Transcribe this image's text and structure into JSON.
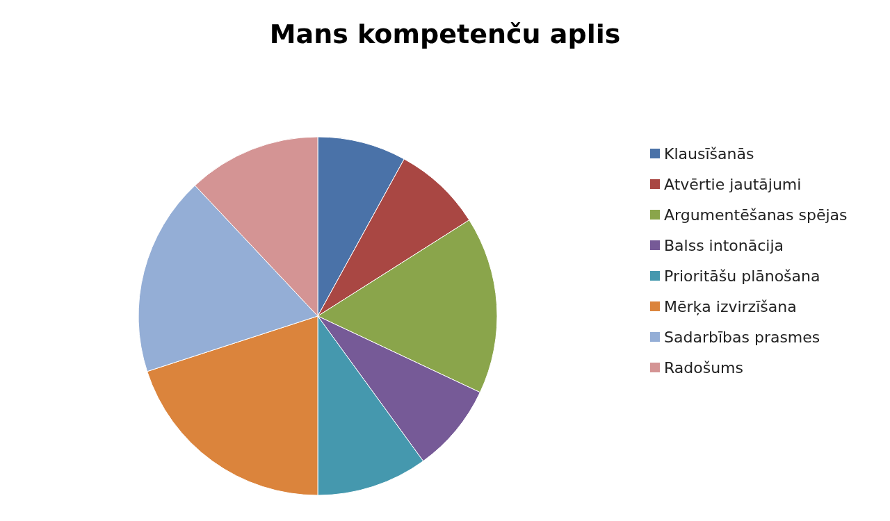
{
  "chart_data": {
    "type": "pie",
    "title": "Mans kompetenču aplis",
    "categories": [
      "Klausīšanās",
      "Atvērtie jautājumi",
      "Argumentēšanas spējas",
      "Balss intonācija",
      "Prioritāšu plānošana",
      "Mērķa izvirzīšana",
      "Sadarbības prasmes",
      "Radošums"
    ],
    "values": [
      8,
      8,
      16,
      8,
      10,
      20,
      18,
      12
    ],
    "colors": [
      "#4a72a8",
      "#a94743",
      "#8aa54b",
      "#765a97",
      "#4598ae",
      "#db843c",
      "#94aed6",
      "#d49494"
    ],
    "legend": "right"
  }
}
